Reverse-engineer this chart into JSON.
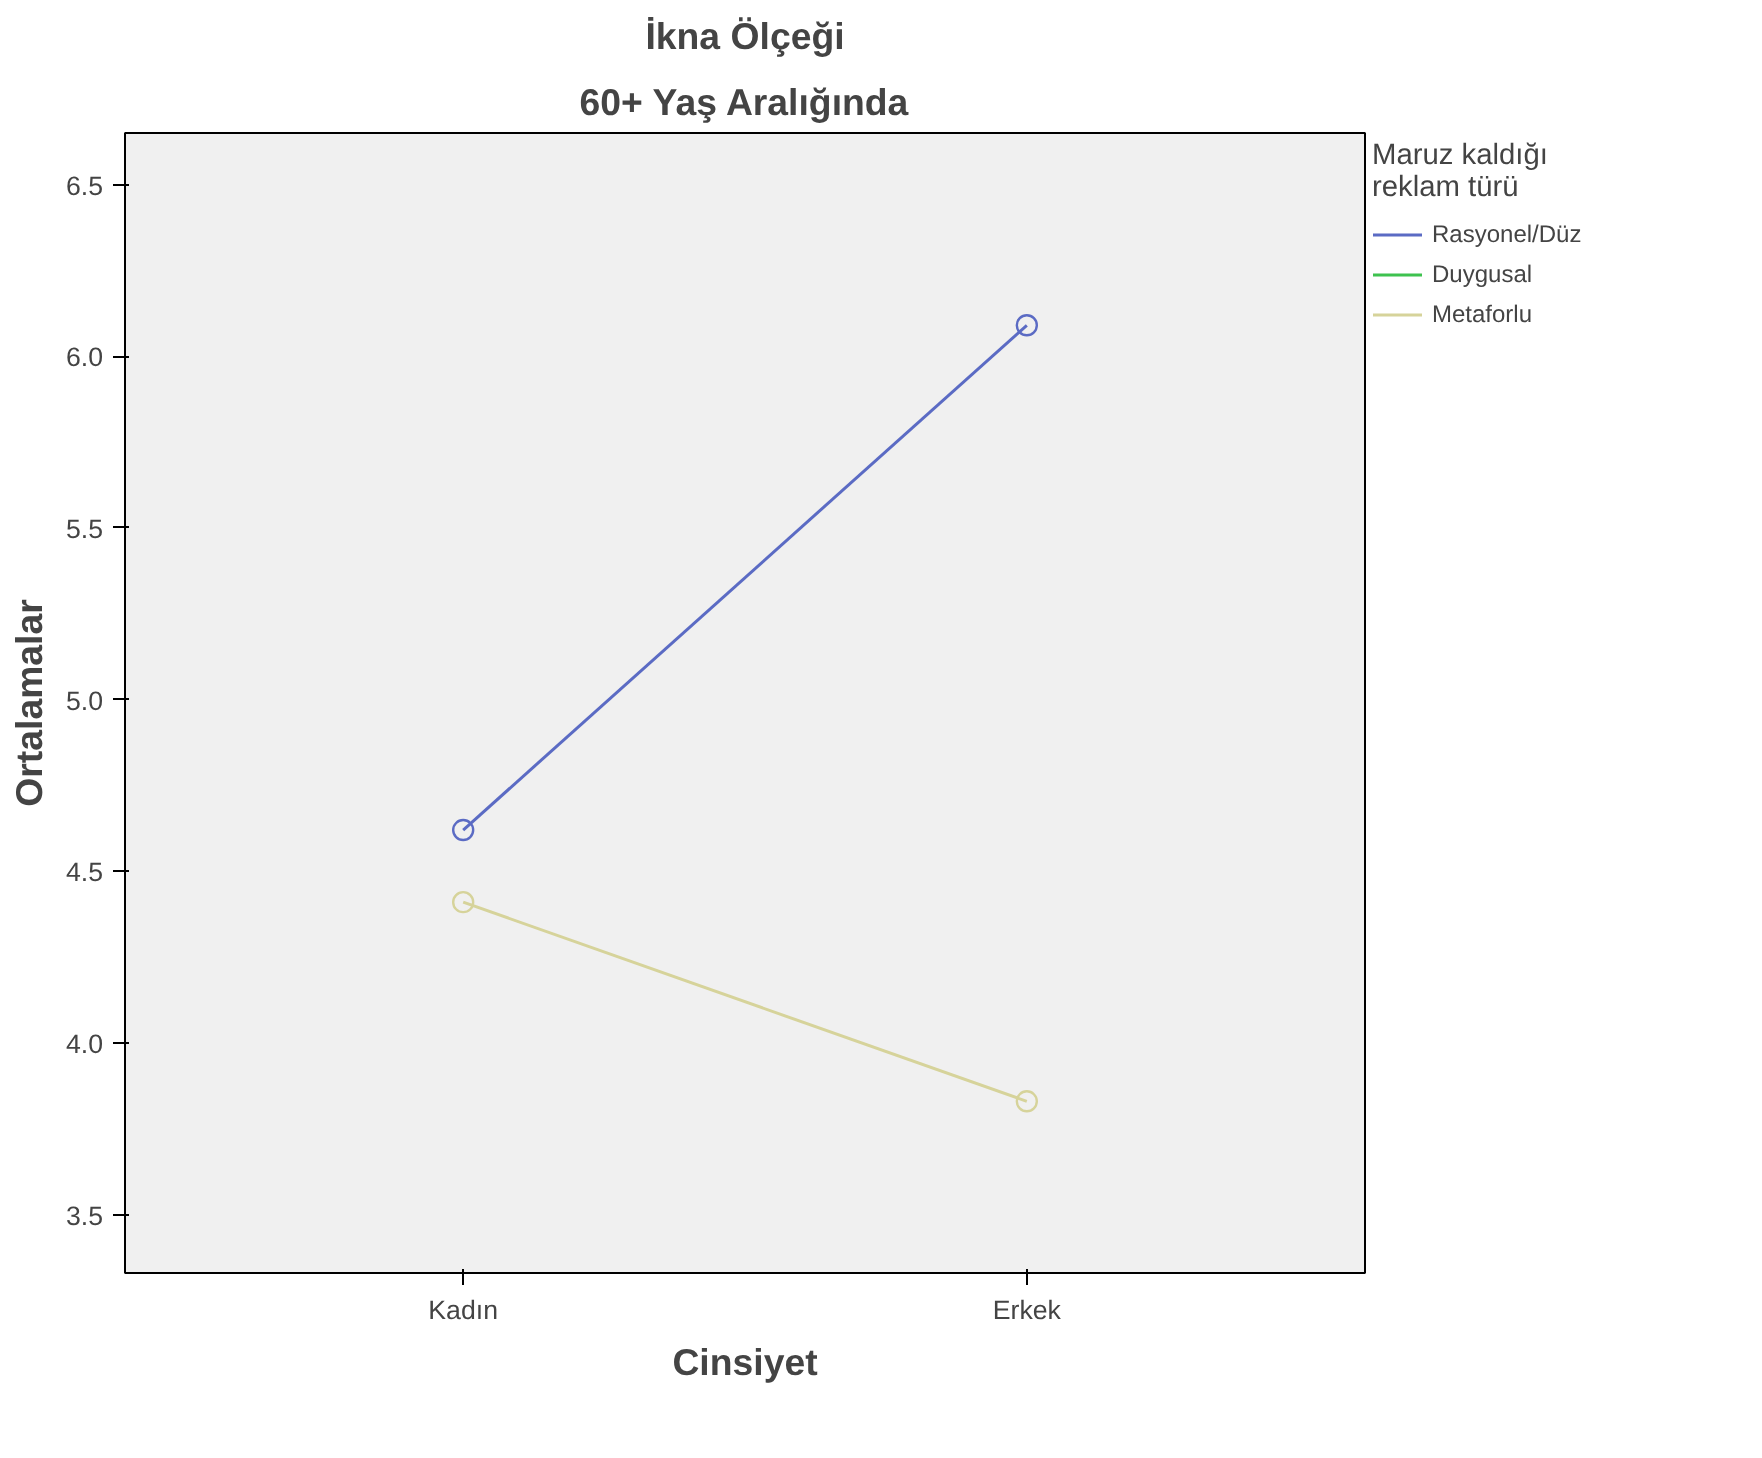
{
  "chart_data": {
    "type": "line",
    "title": "İkna Ölçeği",
    "subtitle": "60+ Yaş Aralığında",
    "xlabel": "Cinsiyet",
    "ylabel": "Ortalamalar",
    "legend_title": "Maruz kaldığı\nreklam türü",
    "categories": [
      "Kadın",
      "Erkek"
    ],
    "series": [
      {
        "name": "Rasyonel/Düz",
        "color": "#5b6bc4",
        "values": [
          4.62,
          6.09
        ]
      },
      {
        "name": "Duygusal",
        "color": "#3ec24f",
        "values": [
          null,
          null
        ]
      },
      {
        "name": "Metaforlu",
        "color": "#d6d39a",
        "values": [
          4.41,
          3.83
        ]
      }
    ],
    "ylim": [
      3.33,
      6.65
    ],
    "yticks": [
      3.5,
      {
        "value": 4,
        "label": "4.0"
      },
      4.5,
      {
        "value": 5,
        "label": "5.0"
      },
      5.5,
      {
        "value": 6,
        "label": "6.0"
      },
      6.5
    ],
    "grid": false,
    "legend": "right",
    "marker": "circle",
    "line_style": "solid"
  }
}
